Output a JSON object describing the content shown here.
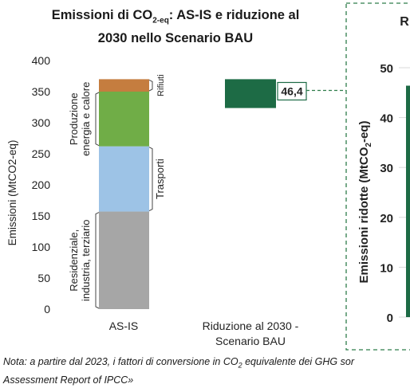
{
  "title": {
    "line1_prefix": "Emissioni di CO",
    "line1_sub": "2-eq",
    "line1_suffix": ": AS-IS e riduzione al",
    "line2": "2030 nello Scenario BAU"
  },
  "chart_data": [
    {
      "type": "bar",
      "stacked": true,
      "ylabel": "Emissioni (MtCO2-eq)",
      "ylim": [
        0,
        400
      ],
      "yticks": [
        0,
        50,
        100,
        150,
        200,
        250,
        300,
        350,
        400
      ],
      "grid": false,
      "categories": [
        "AS-IS",
        "Riduzione al 2030 - Scenario BAU"
      ],
      "category_lines": [
        [
          "AS-IS"
        ],
        [
          "Riduzione al 2030 -",
          "Scenario BAU"
        ]
      ],
      "stack": [
        {
          "label": "Residenziale, industria, terziario",
          "label_lines": [
            "Residenziale,",
            "industria, terziario"
          ],
          "value": 157,
          "color": "#a6a6a6"
        },
        {
          "label": "Trasporti",
          "label_lines": [
            "Trasporti"
          ],
          "value": 105,
          "color": "#9dc3e6"
        },
        {
          "label": "Produzione energia e calore",
          "label_lines": [
            "Produzione",
            "energia e calore"
          ],
          "value": 88,
          "color": "#70ad47"
        },
        {
          "label": "Rifiuti",
          "label_lines": [
            "Rifiuti"
          ],
          "value": 20,
          "color": "#c57d3f"
        }
      ],
      "reduction": {
        "value": 46.4,
        "label": "46,4",
        "top": 370,
        "color": "#1d6b45"
      }
    },
    {
      "type": "bar",
      "ylabel": "Emissioni ridotte (MtCO2-eq)",
      "ylabel_parts": [
        "Emissioni ridotte (MtCO",
        "2",
        "-eq)"
      ],
      "title_fragment": "R",
      "ylim": [
        0,
        50
      ],
      "yticks": [
        0,
        10,
        20,
        30,
        40,
        50
      ],
      "grid": true,
      "values": [
        46.4
      ],
      "color": "#1d6b45"
    }
  ],
  "note": {
    "line1_prefix": "Nota: a partire dal 2023, i fattori di conversione in CO",
    "line1_sub": "2",
    "line1_suffix": " equivalente dei GHG sor",
    "line2": "Assessment Report of IPCC»"
  }
}
